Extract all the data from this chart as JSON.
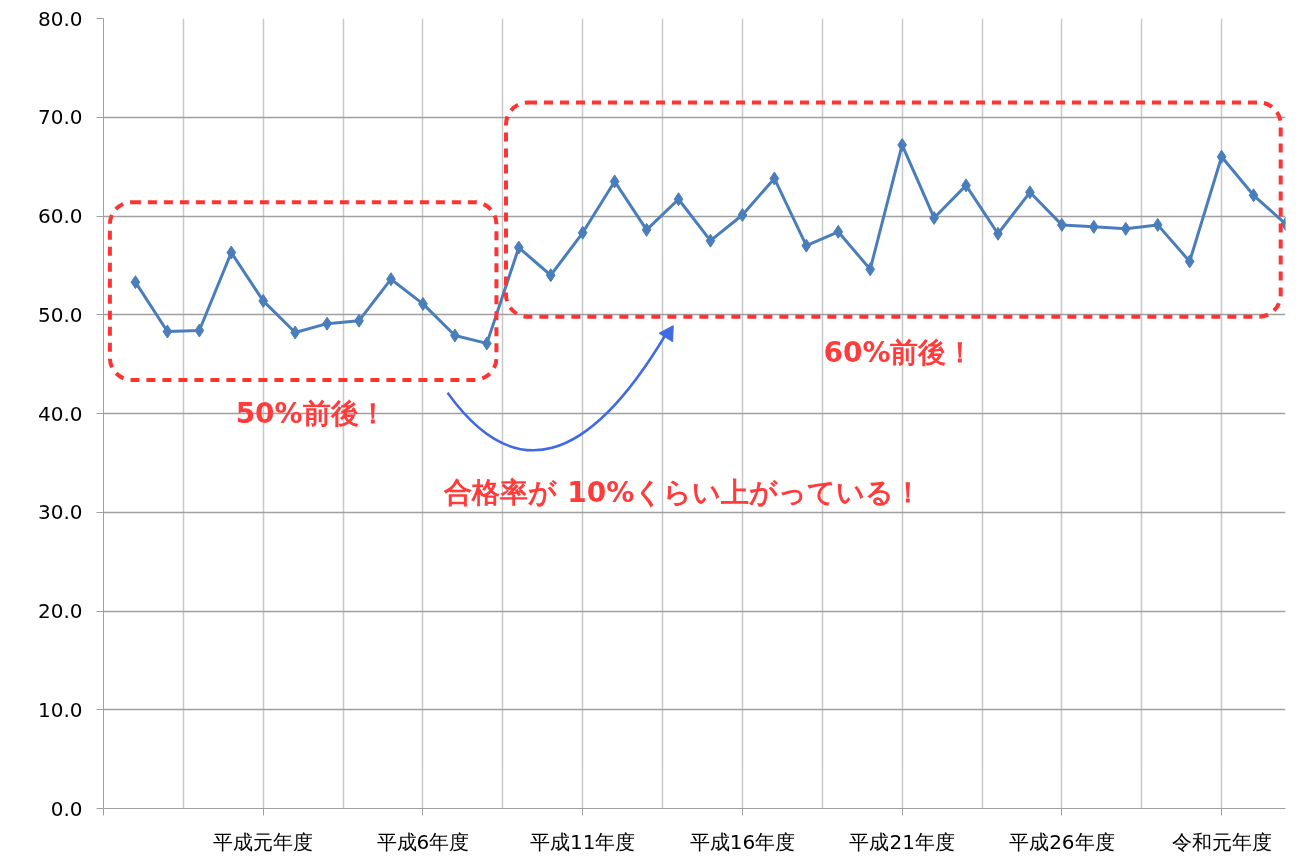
{
  "chart_data": {
    "type": "line",
    "categories": [
      null,
      null,
      null,
      null,
      "平成元年度",
      null,
      null,
      null,
      null,
      "平成6年度",
      null,
      null,
      null,
      null,
      "平成11年度",
      null,
      null,
      null,
      null,
      "平成16年度",
      null,
      null,
      null,
      null,
      "平成21年度",
      null,
      null,
      null,
      null,
      "平成26年度",
      null,
      null,
      null,
      null,
      "令和元年度",
      null,
      null
    ],
    "series": [
      {
        "color": "#4a7ebb",
        "values": [
          53.3,
          48.3,
          48.4,
          56.3,
          51.4,
          48.2,
          49.1,
          49.4,
          53.6,
          51.1,
          47.9,
          47.1,
          56.8,
          54.0,
          58.3,
          63.5,
          58.6,
          61.7,
          57.5,
          60.1,
          63.8,
          57.0,
          58.4,
          54.6,
          67.2,
          59.8,
          63.1,
          58.2,
          62.4,
          59.1,
          58.9,
          58.7,
          59.1,
          55.4,
          66.0,
          62.1,
          59.2
        ]
      }
    ],
    "ylim": [
      0,
      80
    ],
    "yticks": [
      {
        "value": 0,
        "label": "0.0"
      },
      {
        "value": 10,
        "label": "10.0"
      },
      {
        "value": 20,
        "label": "20.0"
      },
      {
        "value": 30,
        "label": "30.0"
      },
      {
        "value": 40,
        "label": "40.0"
      },
      {
        "value": 50,
        "label": "50.0"
      },
      {
        "value": 60,
        "label": "60.0"
      },
      {
        "value": 70,
        "label": "70.0"
      },
      {
        "value": 80,
        "label": "80.0"
      }
    ],
    "grid": true,
    "marker": "diamond",
    "line_style": "solid",
    "annotations": [
      "50%前後！",
      "60%前後！",
      "合格率が 10%くらい上がっている！"
    ]
  }
}
